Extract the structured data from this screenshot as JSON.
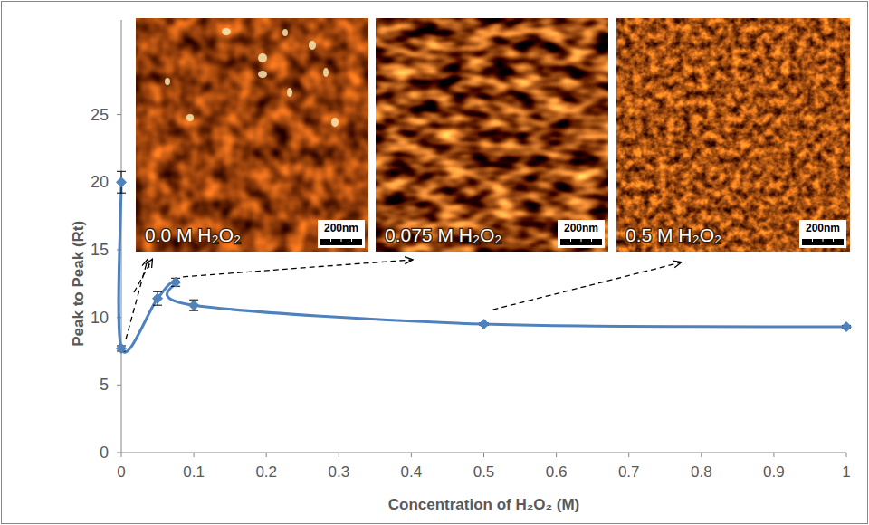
{
  "chart_data": {
    "type": "line",
    "x_label": "Concentration of H₂O₂ (M)",
    "y_label": "Peak to Peak (Rt)",
    "x": [
      0,
      0,
      0.05,
      0.075,
      0.1,
      0.5,
      1
    ],
    "values": [
      20,
      7.7,
      11.4,
      12.6,
      10.9,
      9.5,
      9.3
    ],
    "errors": [
      0.8,
      0.2,
      0.5,
      0.3,
      0.4,
      0.1,
      0.1
    ],
    "color": "#4f81bd",
    "marker": "diamond",
    "line_style": "solid",
    "xlim": [
      0,
      1
    ],
    "xticks": [
      0,
      0.1,
      0.2,
      0.3,
      0.4,
      0.5,
      0.6,
      0.7,
      0.8,
      0.9,
      1
    ],
    "ylim": [
      0,
      32
    ],
    "yticks": [
      0,
      5,
      10,
      15,
      20,
      25
    ],
    "grid": false,
    "annotations": [
      {
        "text": "0.0 M H₂O₂",
        "scale_bar": "200nm"
      },
      {
        "text": "0.075 M H₂O₂",
        "scale_bar": "200nm"
      },
      {
        "text": "0.5 M H₂O₂",
        "scale_bar": "200nm"
      }
    ]
  }
}
